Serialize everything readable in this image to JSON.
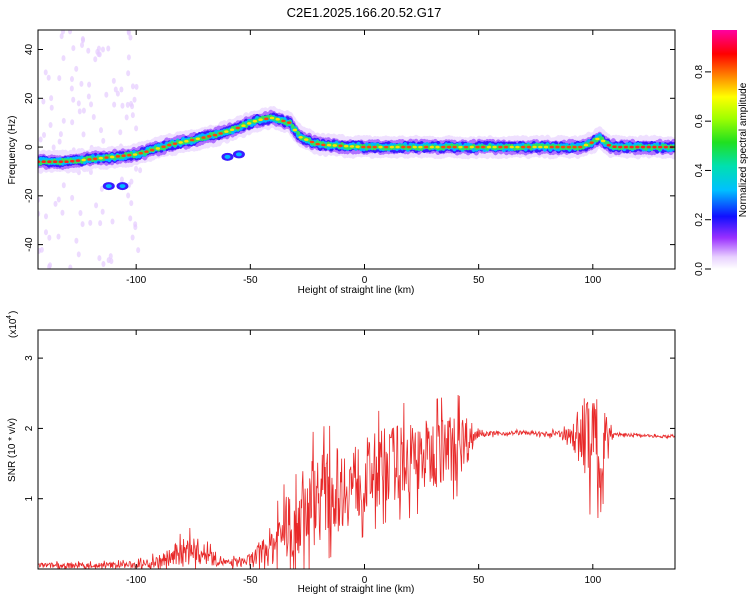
{
  "title": "C2E1.2025.166.20.52.G17",
  "chart_data": [
    {
      "type": "heatmap",
      "xlabel": "Height of straight line (km)",
      "ylabel": "Frequency (Hz)",
      "xlim": [
        -143,
        136
      ],
      "ylim": [
        -50,
        48
      ],
      "xticks": [
        -100,
        -50,
        0,
        50,
        100
      ],
      "yticks": [
        -40,
        -20,
        0,
        20,
        40
      ],
      "colorbar": {
        "label": "Normalized spectral amplitude",
        "range": [
          0,
          0.97
        ],
        "ticks": [
          0.0,
          0.2,
          0.4,
          0.6,
          0.8
        ],
        "tick_labels": [
          "0.0",
          "0.2",
          "0.4",
          "0.6",
          "0.8"
        ]
      },
      "ridge": {
        "x": [
          -143,
          -130,
          -120,
          -110,
          -100,
          -92,
          -85,
          -75,
          -65,
          -55,
          -47,
          -40,
          -33,
          -28,
          -20,
          0,
          20,
          40,
          60,
          80,
          95,
          100,
          103,
          106,
          110,
          136
        ],
        "y": [
          -6,
          -6,
          -5,
          -4,
          -3,
          -1,
          1,
          3,
          5,
          8,
          11,
          12,
          10,
          4,
          1,
          0,
          0,
          0,
          0,
          0,
          0,
          2,
          4,
          1,
          0,
          0
        ]
      }
    },
    {
      "type": "line",
      "xlabel": "Height of straight line (km)",
      "ylabel": "SNR (10 * v/v)",
      "y_scale_label": "(x10",
      "y_scale_exp": "4",
      "xlim": [
        -143,
        136
      ],
      "ylim": [
        0,
        3.4
      ],
      "xticks": [
        -100,
        -50,
        0,
        50,
        100
      ],
      "yticks": [
        1,
        2,
        3
      ],
      "color": "#e82828",
      "envelope": {
        "x": [
          -143,
          -120,
          -100,
          -90,
          -80,
          -75,
          -70,
          -60,
          -50,
          -40,
          -30,
          -25,
          -20,
          -10,
          0,
          10,
          20,
          30,
          40,
          45,
          50,
          60,
          70,
          80,
          90,
          95,
          100,
          103,
          106,
          108,
          110,
          120,
          136
        ],
        "base": [
          0.05,
          0.05,
          0.06,
          0.1,
          0.22,
          0.28,
          0.2,
          0.08,
          0.12,
          0.35,
          0.75,
          0.9,
          1.05,
          1.15,
          1.3,
          1.5,
          1.55,
          1.65,
          1.75,
          1.85,
          1.92,
          1.93,
          1.94,
          1.92,
          1.9,
          1.9,
          1.85,
          1.8,
          1.85,
          1.9,
          1.92,
          1.9,
          1.88
        ],
        "noise": [
          0.04,
          0.04,
          0.05,
          0.1,
          0.2,
          0.22,
          0.15,
          0.05,
          0.1,
          0.3,
          0.6,
          0.65,
          0.65,
          0.6,
          0.55,
          0.55,
          0.55,
          0.5,
          0.5,
          0.35,
          0.04,
          0.03,
          0.03,
          0.03,
          0.1,
          0.5,
          0.8,
          0.7,
          0.5,
          0.1,
          0.03,
          0.02,
          0.02
        ]
      }
    }
  ]
}
